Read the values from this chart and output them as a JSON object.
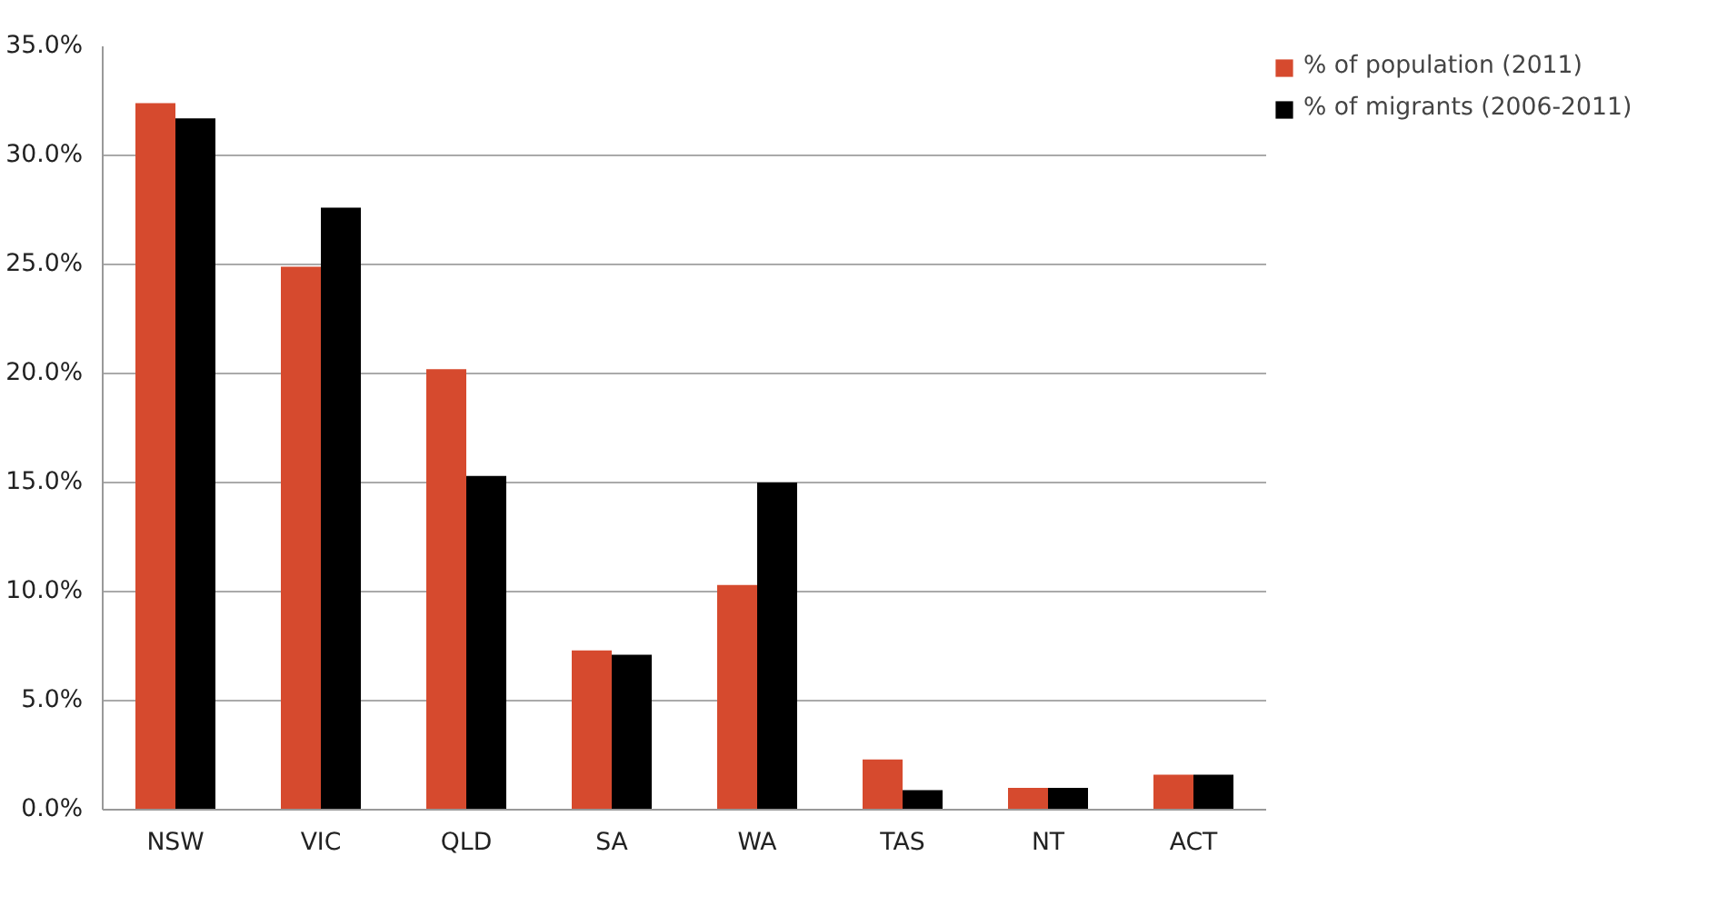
{
  "chart_data": {
    "type": "bar",
    "categories": [
      "NSW",
      "VIC",
      "QLD",
      "SA",
      "WA",
      "TAS",
      "NT",
      "ACT"
    ],
    "series": [
      {
        "name": "% of population (2011)",
        "color": "#d64a2e",
        "values": [
          32.4,
          24.9,
          20.2,
          7.3,
          10.3,
          2.3,
          1.0,
          1.6
        ]
      },
      {
        "name": "% of migrants (2006-2011)",
        "color": "#000000",
        "values": [
          31.7,
          27.6,
          15.3,
          7.1,
          15.0,
          0.9,
          1.0,
          1.6
        ]
      }
    ],
    "ylim": [
      0,
      35
    ],
    "yticks": [
      {
        "value": 0,
        "label": "0.0%"
      },
      {
        "value": 5,
        "label": "5.0%"
      },
      {
        "value": 10,
        "label": "10.0%"
      },
      {
        "value": 15,
        "label": "15.0%"
      },
      {
        "value": 20,
        "label": "20.0%"
      },
      {
        "value": 25,
        "label": "25.0%"
      },
      {
        "value": 30,
        "label": "30.0%"
      },
      {
        "value": 35,
        "label": "35.0%"
      }
    ],
    "grid": "y",
    "legend": "top right"
  }
}
